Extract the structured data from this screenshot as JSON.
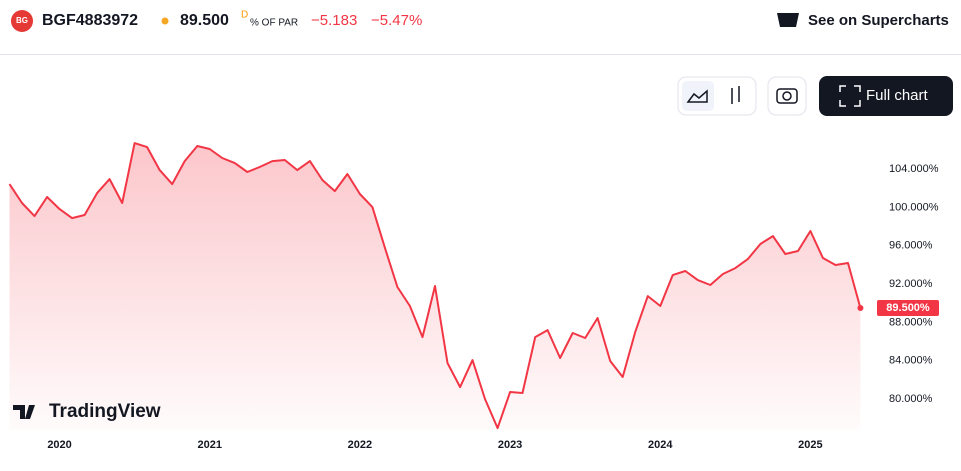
{
  "header": {
    "symbol": "BGF4883972",
    "price": "89.500",
    "price_flag": "D",
    "unit": "% OF PAR",
    "change": "−5.183",
    "change_pct": "−5.47%",
    "supercharts": "See on Supercharts",
    "full_chart": "Full chart",
    "brand": "TradingView"
  },
  "chart_data": {
    "type": "area",
    "color": "#f23645",
    "x": [
      2019.667,
      2019.75,
      2019.833,
      2019.917,
      2020.0,
      2020.083,
      2020.167,
      2020.25,
      2020.333,
      2020.417,
      2020.5,
      2020.583,
      2020.667,
      2020.75,
      2020.833,
      2020.917,
      2021.0,
      2021.083,
      2021.167,
      2021.25,
      2021.333,
      2021.417,
      2021.5,
      2021.583,
      2021.667,
      2021.75,
      2021.833,
      2021.917,
      2022.0,
      2022.083,
      2022.167,
      2022.25,
      2022.333,
      2022.417,
      2022.5,
      2022.583,
      2022.667,
      2022.75,
      2022.833,
      2022.917,
      2023.0,
      2023.083,
      2023.167,
      2023.25,
      2023.333,
      2023.417,
      2023.5,
      2023.583,
      2023.667,
      2023.75,
      2023.833,
      2023.917,
      2024.0,
      2024.083,
      2024.167,
      2024.25,
      2024.333,
      2024.417,
      2024.5,
      2024.583,
      2024.667,
      2024.75,
      2024.833,
      2024.917,
      2025.0,
      2025.083,
      2025.167,
      2025.25,
      2025.333
    ],
    "values": [
      102.44,
      100.46,
      99.1,
      101.09,
      99.83,
      98.89,
      99.21,
      101.5,
      102.96,
      100.46,
      106.72,
      106.3,
      103.9,
      102.44,
      104.84,
      106.41,
      106.1,
      105.16,
      104.63,
      103.7,
      104.22,
      104.84,
      104.95,
      103.9,
      104.84,
      102.86,
      101.71,
      103.49,
      101.4,
      100.04,
      95.76,
      91.69,
      89.71,
      86.47,
      91.8,
      83.76,
      81.25,
      84.07,
      80.0,
      76.97,
      80.73,
      80.63,
      86.47,
      87.2,
      84.28,
      86.89,
      86.37,
      88.46,
      83.97,
      82.3,
      86.99,
      90.75,
      89.71,
      92.94,
      93.36,
      92.42,
      91.9,
      93.05,
      93.67,
      94.61,
      96.18,
      97.01,
      95.14,
      95.45,
      97.54,
      94.72,
      93.99,
      94.2,
      89.5
    ],
    "last_label": {
      "value": 89.5,
      "label": "89.500%"
    },
    "xlim": [
      2019.67,
      2025.43
    ],
    "xticks": [
      2020,
      2021,
      2022,
      2023,
      2024,
      2025
    ],
    "ylim": [
      76.8,
      108.5
    ],
    "yticks": [
      {
        "value": 80,
        "label": "80.000%"
      },
      {
        "value": 84,
        "label": "84.000%"
      },
      {
        "value": 88,
        "label": "88.000%"
      },
      {
        "value": 92,
        "label": "92.000%"
      },
      {
        "value": 96,
        "label": "96.000%"
      },
      {
        "value": 100,
        "label": "100.000%"
      },
      {
        "value": 104,
        "label": "104.000%"
      }
    ]
  }
}
